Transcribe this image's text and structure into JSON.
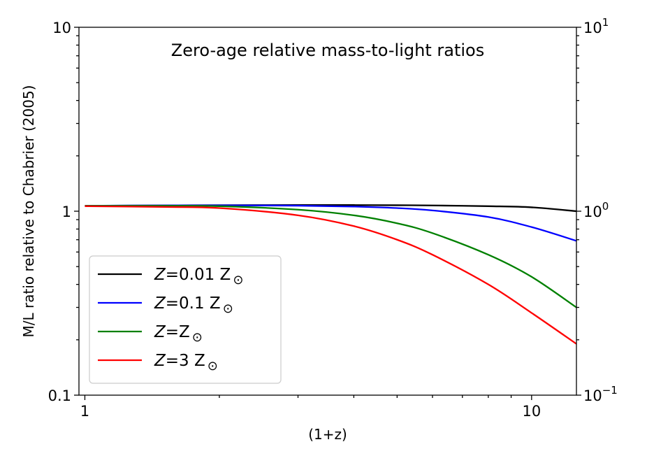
{
  "chart_data": {
    "type": "line",
    "title": "Zero-age relative mass-to-light ratios",
    "xlabel": "(1+z)",
    "ylabel": "M/L ratio relative to Chabrier (2005)",
    "xscale": "log",
    "yscale": "log",
    "xlim": [
      0.97,
      12.6
    ],
    "ylim": [
      0.1,
      10
    ],
    "x_ticks": [
      {
        "value": 1,
        "label": "1"
      },
      {
        "value": 10,
        "label": "10"
      }
    ],
    "y_ticks_left": [
      {
        "value": 0.1,
        "label": "0.1"
      },
      {
        "value": 1,
        "label": "1"
      },
      {
        "value": 10,
        "label": "10"
      }
    ],
    "y_ticks_right": [
      {
        "value": 0.1,
        "base": "10",
        "exp": "−1"
      },
      {
        "value": 1,
        "base": "10",
        "exp": "0"
      },
      {
        "value": 10,
        "base": "10",
        "exp": "1"
      }
    ],
    "x": [
      1,
      1.5,
      2,
      3,
      4,
      5,
      6,
      8,
      10,
      12.6
    ],
    "series": [
      {
        "name": "Z=0.01 Z⊙",
        "label_main": "Z",
        "label_rest": "=0.01 Z",
        "label_sub": "⊙",
        "color": "#000000",
        "values": [
          1.07,
          1.075,
          1.078,
          1.08,
          1.08,
          1.078,
          1.075,
          1.065,
          1.05,
          1.0
        ]
      },
      {
        "name": "Z=0.1 Z⊙",
        "label_main": "Z",
        "label_rest": "=0.1 Z",
        "label_sub": "⊙",
        "color": "#0000ff",
        "values": [
          1.07,
          1.075,
          1.076,
          1.072,
          1.06,
          1.04,
          1.01,
          0.93,
          0.82,
          0.69
        ]
      },
      {
        "name": "Z=Z⊙",
        "label_main": "Z",
        "label_rest": "=Z",
        "label_sub": "⊙",
        "color": "#008000",
        "values": [
          1.07,
          1.07,
          1.065,
          1.02,
          0.95,
          0.86,
          0.76,
          0.58,
          0.44,
          0.3
        ]
      },
      {
        "name": "Z=3 Z⊙",
        "label_main": "Z",
        "label_rest": "=3 Z",
        "label_sub": "⊙",
        "color": "#ff0000",
        "values": [
          1.065,
          1.055,
          1.04,
          0.95,
          0.83,
          0.7,
          0.58,
          0.4,
          0.28,
          0.19
        ]
      }
    ],
    "legend_position": "lower-left",
    "grid": false
  }
}
